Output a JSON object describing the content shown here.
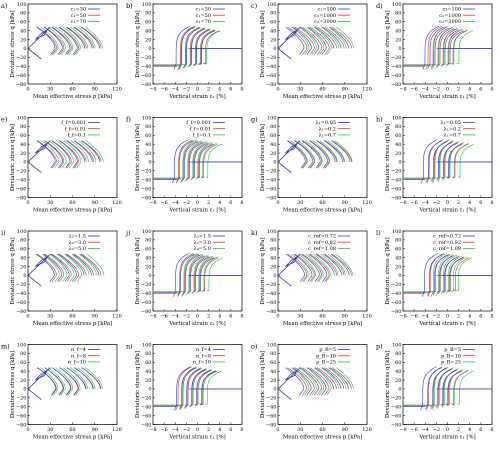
{
  "figure": {
    "rows": 4,
    "cols": 4,
    "shared": {
      "p_axis": {
        "label": "Mean effective stress p [kPa]",
        "range": [
          0,
          120
        ],
        "ticks": [
          "0",
          "30",
          "60",
          "90",
          "120"
        ]
      },
      "strain_axis": {
        "label": "Vertical strain ε₁ [%]",
        "range": [
          -8,
          8
        ],
        "ticks": [
          "−8",
          "−6",
          "−4",
          "−2",
          "0",
          "2",
          "4",
          "6",
          "8"
        ]
      },
      "q_axis": {
        "label": "Deviatoric stress q [kPa]",
        "range": [
          -80,
          100
        ],
        "ticks": [
          "−80",
          "−60",
          "−40",
          "−20",
          "0",
          "20",
          "40",
          "60",
          "80",
          "100"
        ]
      }
    },
    "series_colors": [
      "#1f3fd6",
      "#d83232",
      "#1ec83c"
    ]
  },
  "chart_data": [
    {
      "letter": "a)",
      "type": "line",
      "kind": "path",
      "legend": [
        "c₁=30",
        "c₁=50",
        "c₁=70"
      ],
      "xlabel": "Mean effective stress p [kPa]",
      "ylabel": "Deviatoric stress q [kPa]",
      "xlim": [
        0,
        120
      ],
      "ylim": [
        -80,
        100
      ],
      "series": [
        {
          "name": "c₁=30",
          "values": []
        },
        {
          "name": "c₁=50",
          "values": []
        },
        {
          "name": "c₁=70",
          "values": []
        }
      ]
    },
    {
      "letter": "b)",
      "type": "line",
      "kind": "strain",
      "legend": [
        "c₁=30",
        "c₁=50",
        "c₁=70"
      ],
      "xlabel": "Vertical strain ε₁ [%]",
      "ylabel": "Deviatoric stress q [kPa]",
      "xlim": [
        -8,
        8
      ],
      "ylim": [
        -80,
        100
      ],
      "series": [
        {
          "name": "c₁=30",
          "values": []
        },
        {
          "name": "c₁=50",
          "values": []
        },
        {
          "name": "c₁=70",
          "values": []
        }
      ]
    },
    {
      "letter": "c)",
      "type": "line",
      "kind": "path",
      "legend": [
        "c₂=100",
        "c₂=1000",
        "c₂=3000"
      ],
      "xlabel": "Mean effective stress p [kPa]",
      "ylabel": "Deviatoric stress q [kPa]",
      "xlim": [
        0,
        120
      ],
      "ylim": [
        -80,
        100
      ],
      "series": [
        {
          "name": "c₂=100",
          "values": []
        },
        {
          "name": "c₂=1000",
          "values": []
        },
        {
          "name": "c₂=3000",
          "values": []
        }
      ]
    },
    {
      "letter": "d)",
      "type": "line",
      "kind": "strain",
      "legend": [
        "c₂=100",
        "c₂=1000",
        "c₂=3000"
      ],
      "xlabel": "Vertical strain ε₁ [%]",
      "ylabel": "Deviatoric stress q [kPa]",
      "xlim": [
        -8,
        8
      ],
      "ylim": [
        -80,
        100
      ],
      "series": [
        {
          "name": "c₂=100",
          "values": []
        },
        {
          "name": "c₂=1000",
          "values": []
        },
        {
          "name": "c₂=3000",
          "values": []
        }
      ]
    },
    {
      "letter": "e)",
      "type": "line",
      "kind": "path",
      "legend": [
        "f_f=0.001",
        "f_f=0.01",
        "f_f=0.1"
      ],
      "xlabel": "Mean effective stress p [kPa]",
      "ylabel": "Deviatoric stress q [kPa]",
      "xlim": [
        0,
        120
      ],
      "ylim": [
        -80,
        100
      ],
      "series": [
        {
          "name": "f_f=0.001",
          "values": []
        },
        {
          "name": "f_f=0.01",
          "values": []
        },
        {
          "name": "f_f=0.1",
          "values": []
        }
      ]
    },
    {
      "letter": "f)",
      "type": "line",
      "kind": "strain",
      "legend": [
        "f_f=0.001",
        "f_f=0.01",
        "f_f=0.1"
      ],
      "xlabel": "Vertical strain ε₁ [%]",
      "ylabel": "Deviatoric stress q [kPa]",
      "xlim": [
        -8,
        8
      ],
      "ylim": [
        -80,
        100
      ],
      "series": [
        {
          "name": "f_f=0.001",
          "values": []
        },
        {
          "name": "f_f=0.01",
          "values": []
        },
        {
          "name": "f_f=0.1",
          "values": []
        }
      ]
    },
    {
      "letter": "g)",
      "type": "line",
      "kind": "path",
      "legend": [
        "λ₁=0.05",
        "λ₁=0.2",
        "λ₁=0.7"
      ],
      "xlabel": "Mean effective stress p [kPa]",
      "ylabel": "Deviatoric stress q [kPa]",
      "xlim": [
        0,
        120
      ],
      "ylim": [
        -80,
        100
      ],
      "series": [
        {
          "name": "λ₁=0.05",
          "values": []
        },
        {
          "name": "λ₁=0.2",
          "values": []
        },
        {
          "name": "λ₁=0.7",
          "values": []
        }
      ]
    },
    {
      "letter": "h)",
      "type": "line",
      "kind": "strain",
      "legend": [
        "λ₁=0.05",
        "λ₁=0.2",
        "λ₁=0.7"
      ],
      "xlabel": "Vertical strain ε₁ [%]",
      "ylabel": "Deviatoric stress q [kPa]",
      "xlim": [
        -8,
        8
      ],
      "ylim": [
        -80,
        100
      ],
      "series": [
        {
          "name": "λ₁=0.05",
          "values": []
        },
        {
          "name": "λ₁=0.2",
          "values": []
        },
        {
          "name": "λ₁=0.7",
          "values": []
        }
      ]
    },
    {
      "letter": "i)",
      "type": "line",
      "kind": "path",
      "legend": [
        "λ₂=1.5",
        "λ₂=3.0",
        "λ₂=5.0"
      ],
      "xlabel": "Mean effective stress p [kPa]",
      "ylabel": "Deviatoric stress q [kPa]",
      "xlim": [
        0,
        120
      ],
      "ylim": [
        -80,
        100
      ],
      "series": [
        {
          "name": "λ₂=1.5",
          "values": []
        },
        {
          "name": "λ₂=3.0",
          "values": []
        },
        {
          "name": "λ₂=5.0",
          "values": []
        }
      ]
    },
    {
      "letter": "j)",
      "type": "line",
      "kind": "strain",
      "legend": [
        "λ₂=1.5",
        "λ₂=3.0",
        "λ₂=5.0"
      ],
      "xlabel": "Vertical strain ε₁ [%]",
      "ylabel": "Deviatoric stress q [kPa]",
      "xlim": [
        -8,
        8
      ],
      "ylim": [
        -80,
        100
      ],
      "series": [
        {
          "name": "λ₂=1.5",
          "values": []
        },
        {
          "name": "λ₂=3.0",
          "values": []
        },
        {
          "name": "λ₂=5.0",
          "values": []
        }
      ]
    },
    {
      "letter": "k)",
      "type": "line",
      "kind": "path",
      "legend": [
        "c_ref=0.72",
        "c_ref=0.92",
        "c_ref=1.08"
      ],
      "xlabel": "Mean effective stress p [kPa]",
      "ylabel": "Deviatoric stress q [kPa]",
      "xlim": [
        0,
        120
      ],
      "ylim": [
        -80,
        100
      ],
      "series": [
        {
          "name": "c_ref=0.72",
          "values": []
        },
        {
          "name": "c_ref=0.92",
          "values": []
        },
        {
          "name": "c_ref=1.08",
          "values": []
        }
      ]
    },
    {
      "letter": "l)",
      "type": "line",
      "kind": "strain",
      "legend": [
        "c_ref=0.72",
        "c_ref=0.92",
        "c_ref=1.08"
      ],
      "xlabel": "Vertical strain ε₁ [%]",
      "ylabel": "Deviatoric stress q [kPa]",
      "xlim": [
        -8,
        8
      ],
      "ylim": [
        -80,
        100
      ],
      "series": [
        {
          "name": "c_ref=0.72",
          "values": []
        },
        {
          "name": "c_ref=0.92",
          "values": []
        },
        {
          "name": "c_ref=1.08",
          "values": []
        }
      ]
    },
    {
      "letter": "m)",
      "type": "line",
      "kind": "path",
      "legend": [
        "n_f=4",
        "n_f=8",
        "n_f=10"
      ],
      "xlabel": "Mean effective stress p [kPa]",
      "ylabel": "Deviatoric stress q [kPa]",
      "xlim": [
        0,
        120
      ],
      "ylim": [
        -80,
        100
      ],
      "series": [
        {
          "name": "n_f=4",
          "values": []
        },
        {
          "name": "n_f=8",
          "values": []
        },
        {
          "name": "n_f=10",
          "values": []
        }
      ]
    },
    {
      "letter": "n)",
      "type": "line",
      "kind": "strain",
      "legend": [
        "n_f=4",
        "n_f=8",
        "n_f=10"
      ],
      "xlabel": "Vertical strain ε₁ [%]",
      "ylabel": "Deviatoric stress q [kPa]",
      "xlim": [
        -8,
        8
      ],
      "ylim": [
        -80,
        100
      ],
      "series": [
        {
          "name": "n_f=4",
          "values": []
        },
        {
          "name": "n_f=8",
          "values": []
        },
        {
          "name": "n_f=10",
          "values": []
        }
      ]
    },
    {
      "letter": "o)",
      "type": "line",
      "kind": "path",
      "legend": [
        "p_B=5",
        "p_B=10",
        "p_B=25"
      ],
      "xlabel": "Mean effective stress p [kPa]",
      "ylabel": "Deviatoric stress q [kPa]",
      "xlim": [
        0,
        120
      ],
      "ylim": [
        -80,
        100
      ],
      "series": [
        {
          "name": "p_B=5",
          "values": []
        },
        {
          "name": "p_B=10",
          "values": []
        },
        {
          "name": "p_B=25",
          "values": []
        }
      ]
    },
    {
      "letter": "p)",
      "type": "line",
      "kind": "strain",
      "legend": [
        "p_B=5",
        "p_B=10",
        "p_B=25"
      ],
      "xlabel": "Vertical strain ε₁ [%]",
      "ylabel": "Deviatoric stress q [kPa]",
      "xlim": [
        -8,
        8
      ],
      "ylim": [
        -80,
        100
      ],
      "series": [
        {
          "name": "p_B=5",
          "values": []
        },
        {
          "name": "p_B=10",
          "values": []
        },
        {
          "name": "p_B=25",
          "values": []
        }
      ]
    }
  ]
}
